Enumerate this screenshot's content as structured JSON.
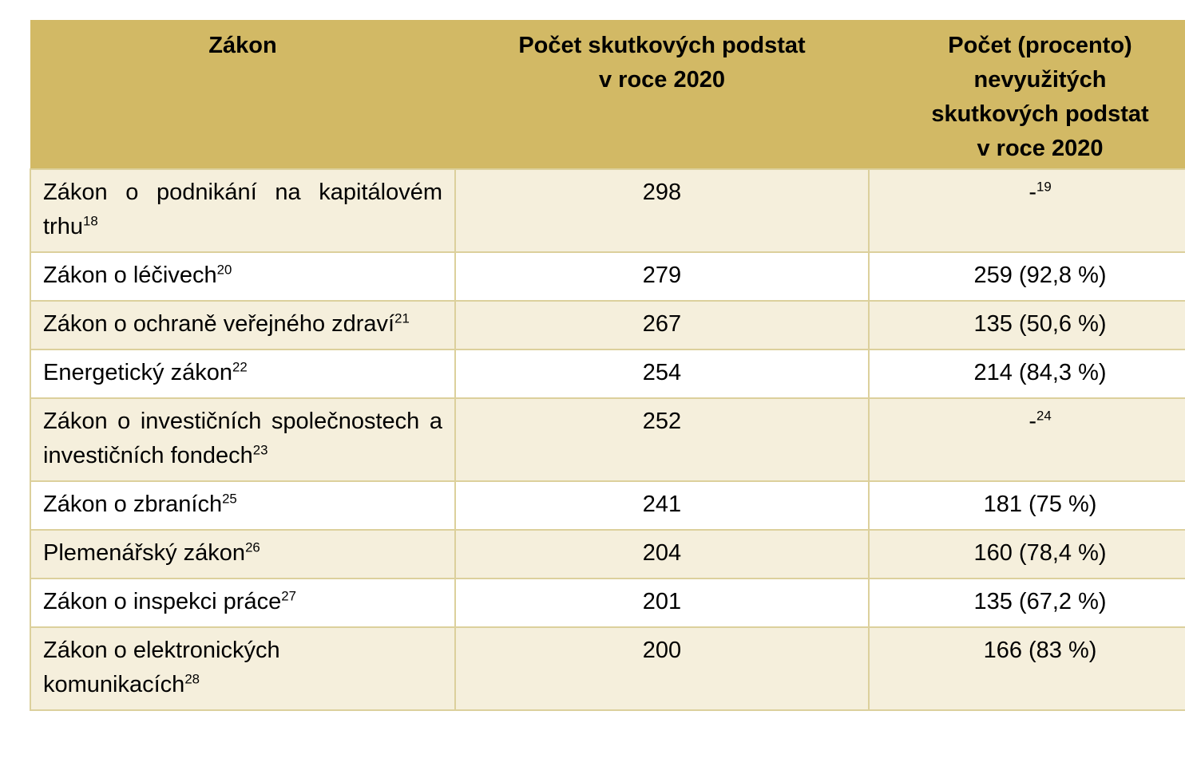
{
  "table": {
    "columns": [
      {
        "label": "Zákon"
      },
      {
        "label": "Počet skutkových podstat\nv roce 2020"
      },
      {
        "label": "Počet (procento)\nnevyužitých\nskutkových podstat\nv roce 2020"
      }
    ],
    "rows": [
      {
        "law": "Zákon o podnikání na kapitálovém trhu",
        "law_note": "18",
        "count": "298",
        "unused": "-",
        "unused_note": "19"
      },
      {
        "law": "Zákon o léčivech",
        "law_note": "20",
        "count": "279",
        "unused": "259 (92,8 %)",
        "unused_note": ""
      },
      {
        "law": "Zákon o ochraně veřejného zdraví",
        "law_note": "21",
        "count": "267",
        "unused": "135 (50,6 %)",
        "unused_note": ""
      },
      {
        "law": "Energetický zákon",
        "law_note": "22",
        "count": "254",
        "unused": "214 (84,3 %)",
        "unused_note": ""
      },
      {
        "law": "Zákon o investičních společnostech a investičních fondech",
        "law_note": "23",
        "count": "252",
        "unused": "-",
        "unused_note": "24"
      },
      {
        "law": "Zákon o zbraních",
        "law_note": "25",
        "count": "241",
        "unused": "181 (75 %)",
        "unused_note": ""
      },
      {
        "law": "Plemenářský zákon",
        "law_note": "26",
        "count": "204",
        "unused": "160 (78,4 %)",
        "unused_note": ""
      },
      {
        "law": "Zákon o inspekci práce",
        "law_note": "27",
        "count": "201",
        "unused": "135 (67,2 %)",
        "unused_note": ""
      },
      {
        "law": "Zákon o elektronických komunikacích",
        "law_note": "28",
        "count": "200",
        "unused": "166 (83 %)",
        "unused_note": ""
      }
    ]
  },
  "colors": {
    "header_bg": "#D2B965",
    "row_stripe_bg": "#F5EFDC",
    "row_bg": "#FFFFFF",
    "border": "#DCD09C",
    "text": "#000000"
  }
}
